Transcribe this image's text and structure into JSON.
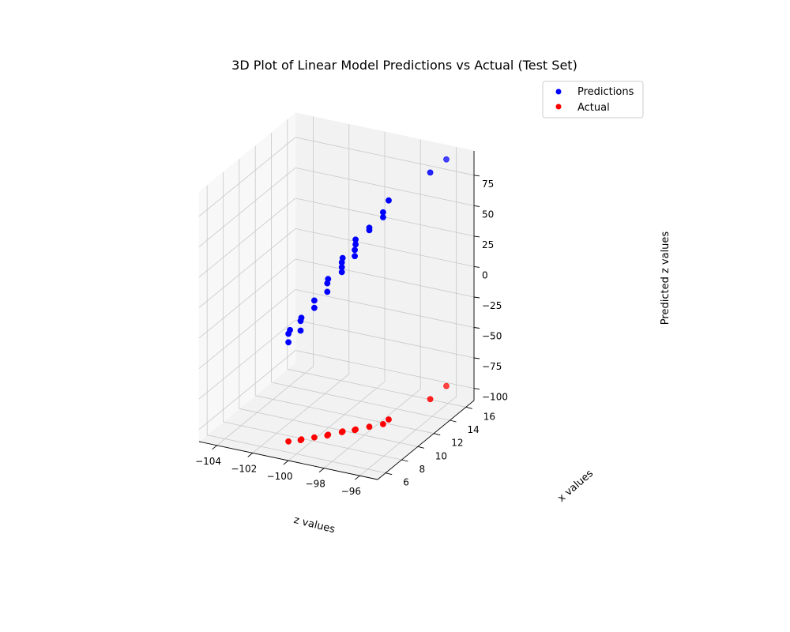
{
  "chart_data": {
    "type": "scatter",
    "title": "3D Plot of Linear Model Predictions vs Actual (Test Set)",
    "xlabel": "z values",
    "ylabel": "x values",
    "zlabel": "Predicted z values",
    "xlim": [
      -105,
      -95
    ],
    "ylim": [
      5,
      17
    ],
    "zlim": [
      -110,
      95
    ],
    "xticks": [
      -104,
      -102,
      -100,
      -98,
      -96
    ],
    "yticks": [
      6,
      8,
      10,
      12,
      14,
      16
    ],
    "zticks": [
      -100,
      -75,
      -50,
      -25,
      0,
      25,
      50,
      75
    ],
    "grid": true,
    "legend": "top-right",
    "series": [
      {
        "name": "Predictions",
        "color": "#0000ff",
        "points": [
          {
            "x": -100.4,
            "y": 5.9,
            "z": -19.0
          },
          {
            "x": -100.4,
            "y": 5.9,
            "z": -12.0
          },
          {
            "x": -100.4,
            "y": 6.1,
            "z": -10.0
          },
          {
            "x": -99.9,
            "y": 6.3,
            "z": -10.0
          },
          {
            "x": -99.9,
            "y": 6.3,
            "z": -2.0
          },
          {
            "x": -99.9,
            "y": 6.4,
            "z": 0.0
          },
          {
            "x": -99.4,
            "y": 6.9,
            "z": 7.0
          },
          {
            "x": -99.4,
            "y": 6.9,
            "z": 13.0
          },
          {
            "x": -98.9,
            "y": 7.4,
            "z": 19.0
          },
          {
            "x": -98.9,
            "y": 7.4,
            "z": 26.0
          },
          {
            "x": -98.9,
            "y": 7.5,
            "z": 29.0
          },
          {
            "x": -98.4,
            "y": 8.1,
            "z": 33.0
          },
          {
            "x": -98.4,
            "y": 8.1,
            "z": 37.0
          },
          {
            "x": -98.4,
            "y": 8.1,
            "z": 41.0
          },
          {
            "x": -98.4,
            "y": 8.2,
            "z": 44.0
          },
          {
            "x": -97.9,
            "y": 8.6,
            "z": 45.0
          },
          {
            "x": -97.9,
            "y": 8.6,
            "z": 50.0
          },
          {
            "x": -97.9,
            "y": 8.7,
            "z": 54.0
          },
          {
            "x": -97.9,
            "y": 8.7,
            "z": 58.0
          },
          {
            "x": -97.4,
            "y": 9.3,
            "z": 64.0
          },
          {
            "x": -97.4,
            "y": 9.3,
            "z": 66.0
          },
          {
            "x": -96.9,
            "y": 9.9,
            "z": 73.0
          },
          {
            "x": -96.9,
            "y": 9.9,
            "z": 77.0
          },
          {
            "x": -96.9,
            "y": 10.6,
            "z": 83.0
          },
          {
            "x": -96.1,
            "y": 14.0,
            "z": 90.0
          },
          {
            "x": -96.1,
            "y": 16.0,
            "z": 90.0
          }
        ]
      },
      {
        "name": "Actual",
        "color": "#ff0000",
        "points": [
          {
            "x": -100.4,
            "y": 5.9,
            "z": -100.4
          },
          {
            "x": -99.9,
            "y": 6.3,
            "z": -99.9
          },
          {
            "x": -99.9,
            "y": 6.4,
            "z": -99.9
          },
          {
            "x": -99.4,
            "y": 6.9,
            "z": -99.4
          },
          {
            "x": -98.9,
            "y": 7.4,
            "z": -98.9
          },
          {
            "x": -98.9,
            "y": 7.5,
            "z": -98.9
          },
          {
            "x": -98.4,
            "y": 8.1,
            "z": -98.4
          },
          {
            "x": -98.4,
            "y": 8.2,
            "z": -98.4
          },
          {
            "x": -97.9,
            "y": 8.6,
            "z": -97.9
          },
          {
            "x": -97.9,
            "y": 8.7,
            "z": -97.9
          },
          {
            "x": -97.4,
            "y": 9.3,
            "z": -97.4
          },
          {
            "x": -96.9,
            "y": 9.9,
            "z": -96.9
          },
          {
            "x": -96.9,
            "y": 10.6,
            "z": -96.9
          },
          {
            "x": -96.1,
            "y": 14.0,
            "z": -96.1
          },
          {
            "x": -96.1,
            "y": 16.0,
            "z": -96.1
          }
        ]
      }
    ]
  }
}
